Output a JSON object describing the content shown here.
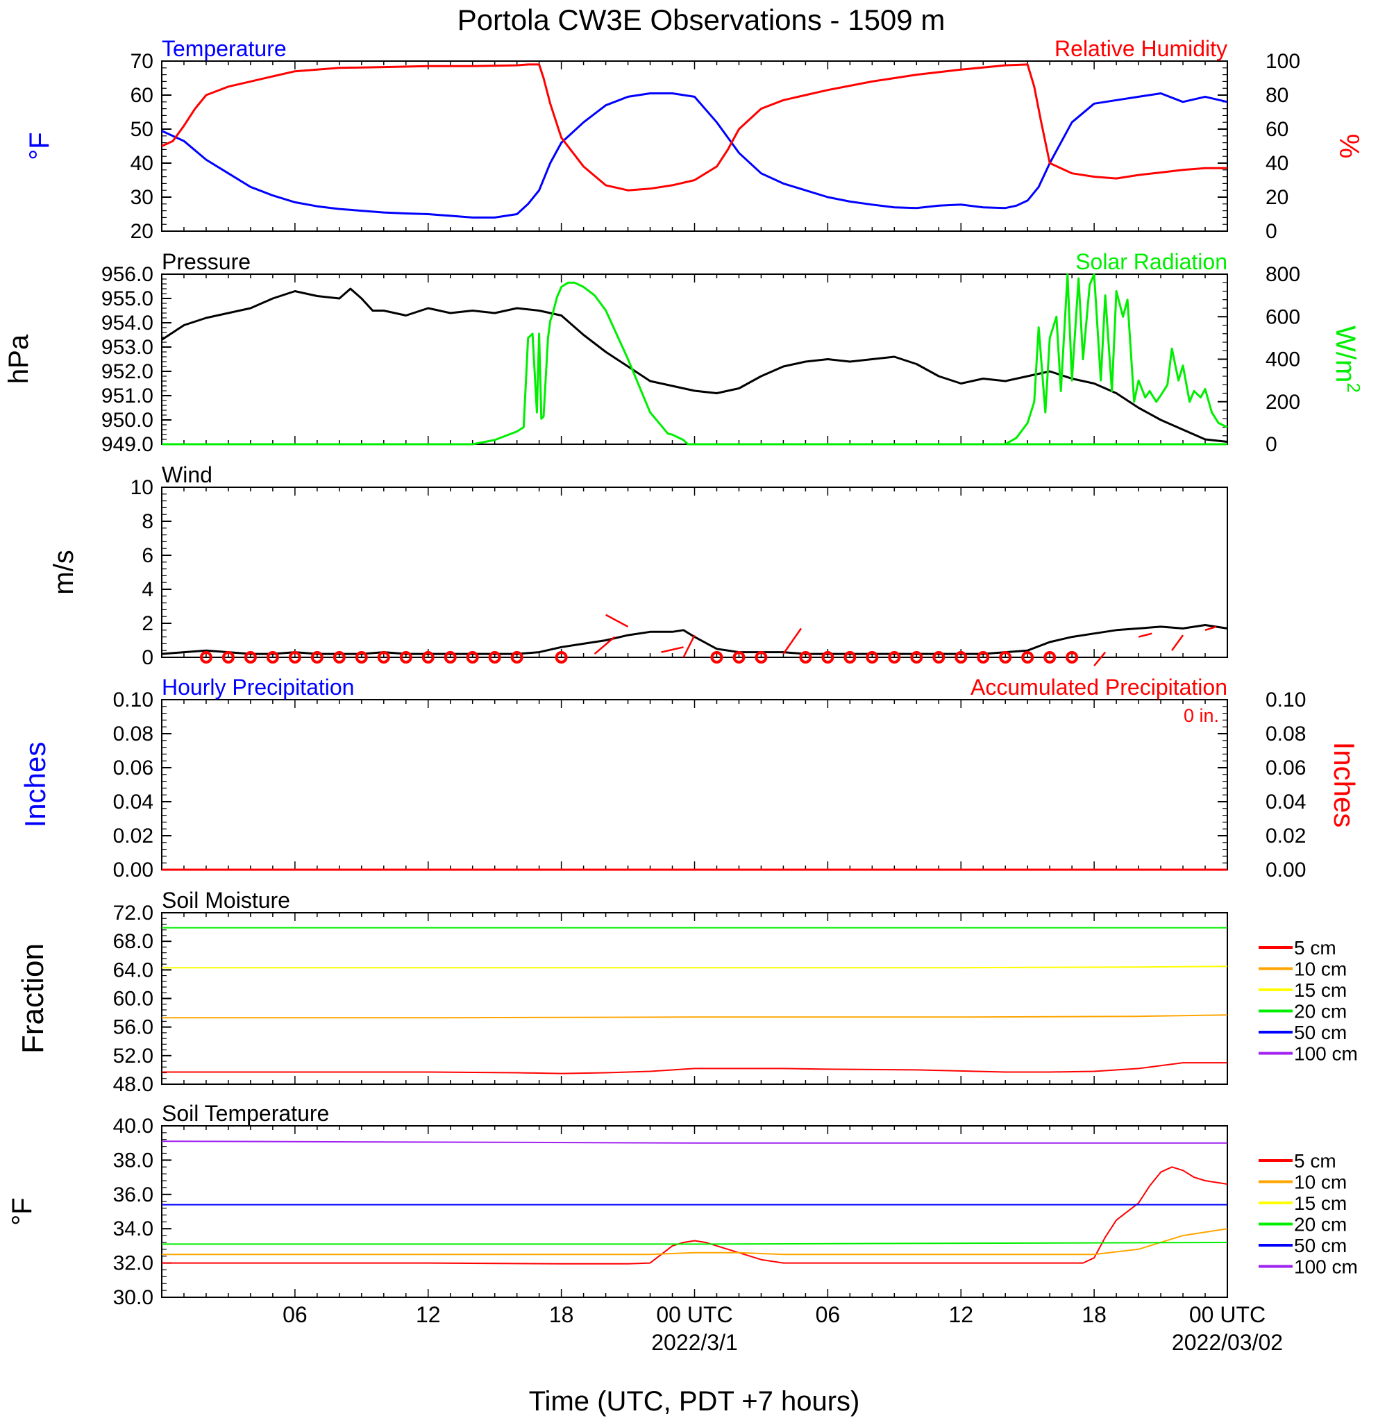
{
  "title": "Portola CW3E Observations - 1509 m",
  "xlabel": "Time (UTC, PDT +7 hours)",
  "x_ticks": [
    "06",
    "12",
    "18",
    "00 UTC",
    "06",
    "12",
    "18",
    "00 UTC"
  ],
  "x_dates": [
    "2022/3/1",
    "2022/03/02"
  ],
  "colors": {
    "temperature": "#0000ff",
    "humidity": "#ff0000",
    "pressure": "#000000",
    "solar": "#00ee00",
    "wind": "#000000",
    "wind_barb": "#ff0000",
    "precip_hourly": "#0000ff",
    "precip_accum": "#ff0000"
  },
  "chart_data": [
    {
      "panel": "temp_rh",
      "type": "line",
      "left_title": "Temperature",
      "right_title": "Relative Humidity",
      "left_unit": "°F",
      "right_unit": "%",
      "left_ticks": [
        "20",
        "30",
        "40",
        "50",
        "60",
        "70"
      ],
      "right_ticks": [
        "0",
        "20",
        "40",
        "60",
        "80",
        "100"
      ],
      "ylim": [
        20,
        70
      ],
      "ylim_right": [
        0,
        100
      ],
      "series": [
        {
          "name": "Temperature",
          "axis": "left",
          "x": [
            0,
            1,
            2,
            3,
            4,
            5,
            6,
            7,
            8,
            9,
            10,
            11,
            12,
            13,
            14,
            15,
            16,
            16.5,
            17,
            17.5,
            18,
            19,
            20,
            21,
            22,
            23,
            24,
            25,
            26,
            27,
            28,
            29,
            30,
            31,
            32,
            33,
            34,
            35,
            36,
            37,
            38,
            38.5,
            39,
            39.5,
            40,
            41,
            42,
            43,
            44,
            45,
            46,
            47,
            48
          ],
          "y": [
            49.5,
            46.5,
            41,
            37,
            33,
            30.5,
            28.5,
            27.3,
            26.5,
            26,
            25.5,
            25.2,
            25,
            24.5,
            24,
            24,
            25,
            28,
            32,
            40,
            46,
            52,
            57,
            59.5,
            60.5,
            60.5,
            59.5,
            52,
            43,
            37,
            34,
            32,
            30,
            28.7,
            27.8,
            27,
            26.8,
            27.5,
            27.8,
            27,
            26.8,
            27.5,
            29,
            33,
            40,
            52,
            57.5,
            58.5,
            59.5,
            60.5,
            58,
            59.5,
            58
          ]
        },
        {
          "name": "Relative Humidity",
          "axis": "right",
          "x": [
            0,
            0.5,
            1,
            1.5,
            2,
            3,
            4,
            5,
            6,
            8,
            10,
            12,
            14,
            16,
            16.5,
            17,
            17.2,
            17.5,
            18,
            19,
            20,
            21,
            22,
            23,
            24,
            25,
            25.5,
            26,
            27,
            28,
            29,
            30,
            32,
            34,
            36,
            38,
            39,
            39.3,
            39.6,
            40,
            41,
            42,
            43,
            44,
            45,
            46,
            47,
            48
          ],
          "y": [
            50,
            53,
            62,
            72,
            80,
            85,
            88,
            91,
            94,
            96,
            96.5,
            97,
            97,
            97.5,
            98,
            98,
            90,
            75,
            55,
            38,
            27,
            24,
            25,
            27,
            30,
            38,
            48,
            60,
            72,
            77,
            80,
            83,
            88,
            92,
            95,
            97.5,
            98,
            85,
            65,
            40,
            34,
            32,
            31,
            33,
            34.5,
            36,
            37,
            37
          ]
        }
      ]
    },
    {
      "panel": "pressure_solar",
      "type": "line",
      "left_title": "Pressure",
      "right_title": "Solar Radiation",
      "left_unit": "hPa",
      "right_unit": "W/m",
      "right_unit_sup": "2",
      "left_ticks": [
        "949.0",
        "950.0",
        "951.0",
        "952.0",
        "953.0",
        "954.0",
        "955.0",
        "956.0"
      ],
      "right_ticks": [
        "0",
        "200",
        "400",
        "600",
        "800"
      ],
      "ylim": [
        949,
        956
      ],
      "ylim_right": [
        0,
        800
      ],
      "series": [
        {
          "name": "Pressure",
          "axis": "left",
          "x": [
            0,
            1,
            2,
            3,
            4,
            5,
            6,
            7,
            8,
            8.5,
            9,
            9.5,
            10,
            11,
            12,
            13,
            14,
            15,
            16,
            17,
            18,
            19,
            20,
            21,
            22,
            23,
            24,
            25,
            26,
            27,
            28,
            29,
            30,
            31,
            32,
            33,
            34,
            35,
            36,
            37,
            38,
            39,
            40,
            41,
            42,
            43,
            44,
            45,
            46,
            47,
            48
          ],
          "y": [
            953.3,
            953.9,
            954.2,
            954.4,
            954.6,
            955.0,
            955.3,
            955.1,
            955.0,
            955.4,
            955.0,
            954.5,
            954.5,
            954.3,
            954.6,
            954.4,
            954.5,
            954.4,
            954.6,
            954.5,
            954.3,
            953.5,
            952.8,
            952.2,
            951.6,
            951.4,
            951.2,
            951.1,
            951.3,
            951.8,
            952.2,
            952.4,
            952.5,
            952.4,
            952.5,
            952.6,
            952.3,
            951.8,
            951.5,
            951.7,
            951.6,
            951.8,
            952.0,
            951.7,
            951.5,
            951.1,
            950.5,
            950.0,
            949.6,
            949.2,
            949.1
          ]
        },
        {
          "name": "Solar Radiation",
          "axis": "right",
          "x": [
            0,
            0.5,
            1,
            14,
            15,
            16,
            16.3,
            16.5,
            16.7,
            16.9,
            17.0,
            17.1,
            17.2,
            17.4,
            17.5,
            17.6,
            17.8,
            18.0,
            18.3,
            18.6,
            19,
            19.5,
            20,
            21,
            22,
            22.8,
            23,
            23.5,
            23.7,
            24,
            25,
            48
          ],
          "y": [
            0,
            0,
            0,
            0,
            20,
            60,
            80,
            500,
            520,
            150,
            520,
            120,
            130,
            500,
            580,
            610,
            690,
            740,
            760,
            760,
            740,
            700,
            630,
            400,
            150,
            50,
            45,
            20,
            0,
            0,
            0,
            0
          ],
          "x2": [
            38,
            38.5,
            39,
            39.3,
            39.5,
            39.8,
            40,
            40.3,
            40.5,
            40.8,
            41,
            41.3,
            41.5,
            41.8,
            42,
            42.3,
            42.5,
            42.8,
            43,
            43.3,
            43.5,
            43.8,
            44,
            44.3,
            44.5,
            44.8,
            45,
            45.3,
            45.5,
            45.8,
            46,
            46.3,
            46.5,
            46.8,
            47,
            47.3,
            47.6,
            48
          ],
          "y2": [
            0,
            30,
            100,
            200,
            550,
            150,
            500,
            600,
            250,
            800,
            300,
            780,
            400,
            750,
            800,
            300,
            700,
            250,
            720,
            600,
            680,
            200,
            300,
            220,
            250,
            200,
            230,
            280,
            450,
            300,
            370,
            200,
            250,
            220,
            260,
            150,
            100,
            80
          ]
        }
      ]
    },
    {
      "panel": "wind",
      "type": "line",
      "left_title": "Wind",
      "left_unit": "m/s",
      "left_ticks": [
        "0",
        "2",
        "4",
        "6",
        "8",
        "10"
      ],
      "ylim": [
        0,
        10
      ],
      "series": [
        {
          "name": "Wind",
          "axis": "left",
          "x": [
            0,
            1,
            2,
            3,
            4,
            5,
            6,
            7,
            8,
            9,
            10,
            11,
            12,
            13,
            14,
            15,
            16,
            17,
            18,
            19,
            20,
            21,
            22,
            23,
            23.5,
            24,
            25,
            26,
            27,
            28,
            29,
            30,
            31,
            32,
            33,
            34,
            35,
            36,
            37,
            38,
            39,
            40,
            41,
            42,
            43,
            44,
            45,
            46,
            47,
            48
          ],
          "y": [
            0.2,
            0.3,
            0.4,
            0.3,
            0.2,
            0.2,
            0.3,
            0.2,
            0.2,
            0.2,
            0.3,
            0.2,
            0.2,
            0.2,
            0.2,
            0.2,
            0.2,
            0.3,
            0.6,
            0.8,
            1.0,
            1.3,
            1.5,
            1.5,
            1.6,
            1.2,
            0.5,
            0.3,
            0.3,
            0.3,
            0.2,
            0.2,
            0.2,
            0.2,
            0.2,
            0.2,
            0.2,
            0.2,
            0.2,
            0.3,
            0.4,
            0.9,
            1.2,
            1.4,
            1.6,
            1.7,
            1.8,
            1.7,
            1.9,
            1.7
          ]
        }
      ],
      "barb_calm_hours": [
        2,
        3,
        4,
        5,
        6,
        7,
        8,
        9,
        10,
        11,
        12,
        13,
        14,
        15,
        16,
        18,
        25,
        26,
        27,
        29,
        30,
        31,
        32,
        33,
        34,
        35,
        36,
        37,
        38,
        39,
        40,
        41
      ],
      "barbs": [
        {
          "x": 19.5,
          "y": 0.2,
          "dx": 0.9,
          "dy": 1.0
        },
        {
          "x": 21.0,
          "y": 1.8,
          "dx": -1.0,
          "dy": 0.7
        },
        {
          "x": 22.5,
          "y": 0.3,
          "dx": 1.0,
          "dy": 0.3
        },
        {
          "x": 23.5,
          "y": 0.0,
          "dx": 0.5,
          "dy": 1.3
        },
        {
          "x": 28.0,
          "y": 0.2,
          "dx": 0.8,
          "dy": 1.5
        },
        {
          "x": 42.5,
          "y": 0.3,
          "dx": -0.5,
          "dy": -0.8
        },
        {
          "x": 44.0,
          "y": 1.2,
          "dx": 0.6,
          "dy": 0.2
        },
        {
          "x": 45.5,
          "y": 0.4,
          "dx": 0.5,
          "dy": 0.9
        },
        {
          "x": 47.0,
          "y": 1.6,
          "dx": 0.5,
          "dy": 0.2
        }
      ]
    },
    {
      "panel": "precip",
      "type": "line",
      "left_title": "Hourly Precipitation",
      "right_title": "Accumulated Precipitation",
      "right_note": "0 in.",
      "left_unit": "Inches",
      "right_unit": "Inches",
      "left_ticks": [
        "0.00",
        "0.02",
        "0.04",
        "0.06",
        "0.08",
        "0.10"
      ],
      "right_ticks": [
        "0.00",
        "0.02",
        "0.04",
        "0.06",
        "0.08",
        "0.10"
      ],
      "ylim": [
        0,
        0.1
      ],
      "series": [
        {
          "name": "Hourly Precipitation",
          "axis": "left",
          "x": [
            0,
            48
          ],
          "y": [
            0,
            0
          ]
        },
        {
          "name": "Accumulated Precipitation",
          "axis": "right",
          "x": [
            0,
            48
          ],
          "y": [
            0,
            0
          ]
        }
      ]
    },
    {
      "panel": "soil_moisture",
      "type": "line",
      "left_title": "Soil Moisture",
      "left_unit": "Fraction",
      "left_ticks": [
        "48.0",
        "52.0",
        "56.0",
        "60.0",
        "64.0",
        "68.0",
        "72.0"
      ],
      "ylim": [
        48,
        72
      ],
      "legend": [
        "5 cm",
        "10 cm",
        "15 cm",
        "20 cm",
        "50 cm",
        "100 cm"
      ],
      "legend_colors": [
        "#ff0000",
        "#ffa500",
        "#ffff00",
        "#00ee00",
        "#0000ff",
        "#a020f0"
      ],
      "series": [
        {
          "name": "5 cm",
          "x": [
            0,
            6,
            12,
            16,
            18,
            20,
            22,
            24,
            26,
            28,
            30,
            34,
            38,
            40,
            42,
            44,
            46,
            48
          ],
          "y": [
            49.7,
            49.7,
            49.7,
            49.6,
            49.5,
            49.6,
            49.8,
            50.2,
            50.2,
            50.2,
            50.1,
            50.0,
            49.7,
            49.7,
            49.8,
            50.2,
            51.0,
            51.0
          ]
        },
        {
          "name": "10 cm",
          "x": [
            0,
            12,
            24,
            36,
            44,
            48
          ],
          "y": [
            57.3,
            57.3,
            57.4,
            57.4,
            57.5,
            57.7
          ]
        },
        {
          "name": "15 cm",
          "x": [
            0,
            12,
            24,
            36,
            44,
            48
          ],
          "y": [
            64.3,
            64.3,
            64.3,
            64.3,
            64.4,
            64.5
          ]
        },
        {
          "name": "20 cm",
          "x": [
            0,
            12,
            24,
            36,
            48
          ],
          "y": [
            69.9,
            69.9,
            69.9,
            69.9,
            69.9
          ]
        }
      ]
    },
    {
      "panel": "soil_temp",
      "type": "line",
      "left_title": "Soil Temperature",
      "left_unit": "°F",
      "left_ticks": [
        "30.0",
        "32.0",
        "34.0",
        "36.0",
        "38.0",
        "40.0"
      ],
      "ylim": [
        30,
        40
      ],
      "legend": [
        "5 cm",
        "10 cm",
        "15 cm",
        "20 cm",
        "50 cm",
        "100 cm"
      ],
      "legend_colors": [
        "#ff0000",
        "#ffa500",
        "#ffff00",
        "#00ee00",
        "#0000ff",
        "#a020f0"
      ],
      "series": [
        {
          "name": "5 cm",
          "x": [
            0,
            6,
            12,
            18,
            21,
            22,
            22.5,
            23,
            23.5,
            24,
            24.5,
            25,
            26,
            27,
            28,
            30,
            36,
            40,
            41.5,
            42,
            42.5,
            43,
            44,
            44.5,
            45,
            45.5,
            46,
            46.5,
            47,
            48
          ],
          "y": [
            32.0,
            32.0,
            32.0,
            31.95,
            31.95,
            32.0,
            32.5,
            33.0,
            33.2,
            33.3,
            33.2,
            33.0,
            32.6,
            32.2,
            32.0,
            32.0,
            32.0,
            32.0,
            32.0,
            32.3,
            33.5,
            34.5,
            35.5,
            36.5,
            37.3,
            37.6,
            37.4,
            37.0,
            36.8,
            36.6
          ]
        },
        {
          "name": "10 cm",
          "x": [
            0,
            12,
            22,
            24,
            26,
            28,
            36,
            42,
            44,
            46,
            48
          ],
          "y": [
            32.5,
            32.5,
            32.5,
            32.6,
            32.6,
            32.5,
            32.5,
            32.5,
            32.8,
            33.6,
            34.0
          ]
        },
        {
          "name": "20 cm",
          "x": [
            0,
            24,
            48
          ],
          "y": [
            33.1,
            33.1,
            33.2
          ]
        },
        {
          "name": "50 cm",
          "x": [
            0,
            24,
            48
          ],
          "y": [
            35.4,
            35.4,
            35.4
          ]
        },
        {
          "name": "100 cm",
          "x": [
            0,
            24,
            48
          ],
          "y": [
            39.1,
            39.0,
            39.0
          ]
        }
      ]
    }
  ]
}
